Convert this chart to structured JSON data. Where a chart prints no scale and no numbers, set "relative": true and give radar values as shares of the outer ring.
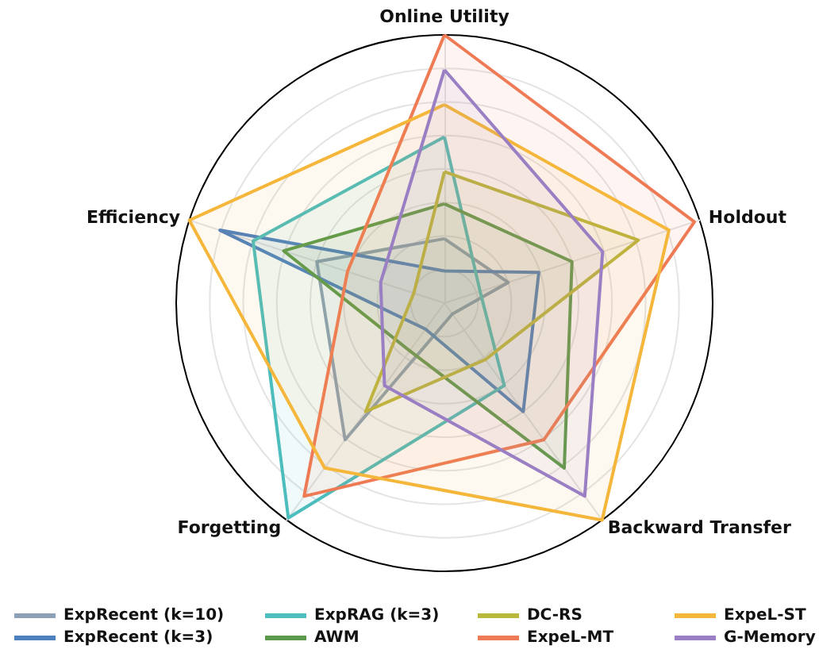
{
  "chart_data": {
    "type": "radar",
    "relative": true,
    "categories": [
      "Online Utility",
      "Holdout",
      "Backward Transfer",
      "Forgetting",
      "Efficiency"
    ],
    "grid": true,
    "legend": "bottom",
    "marker": "none",
    "line_style": "solid",
    "series": [
      {
        "name": "ExpRecent (k=10)",
        "color": "#8da0b5",
        "values": [
          0.24,
          0.25,
          0.05,
          0.63,
          0.5
        ]
      },
      {
        "name": "ExpRecent (k=3)",
        "color": "#4e7fbf",
        "values": [
          0.12,
          0.37,
          0.5,
          0.12,
          0.88
        ]
      },
      {
        "name": "ExpRAG (k=3)",
        "color": "#4dbdbd",
        "values": [
          0.62,
          0.14,
          0.38,
          0.99,
          0.75
        ]
      },
      {
        "name": "AWM",
        "color": "#5a9a4a",
        "values": [
          0.37,
          0.5,
          0.76,
          0.22,
          0.63
        ]
      },
      {
        "name": "DC-RS",
        "color": "#b8b83c",
        "values": [
          0.49,
          0.76,
          0.26,
          0.5,
          0.12
        ]
      },
      {
        "name": "ExpeL-MT",
        "color": "#ee7b55",
        "values": [
          1.0,
          0.98,
          0.63,
          0.89,
          0.38
        ]
      },
      {
        "name": "ExpeL-ST",
        "color": "#f5b73b",
        "values": [
          0.74,
          0.88,
          1.0,
          0.76,
          1.0
        ]
      },
      {
        "name": "G-Memory",
        "color": "#9b7fc4",
        "values": [
          0.87,
          0.62,
          0.89,
          0.38,
          0.25
        ]
      }
    ]
  }
}
